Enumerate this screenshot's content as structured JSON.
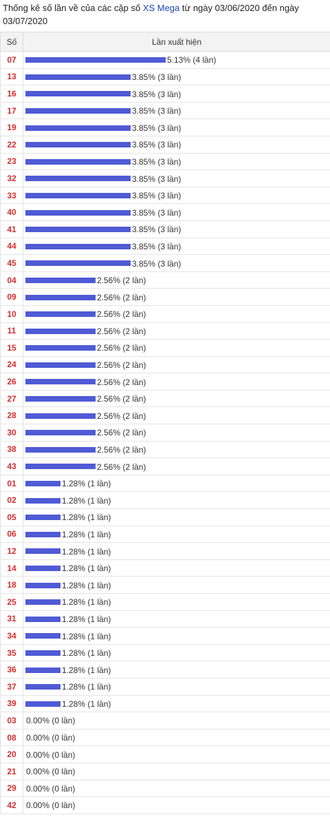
{
  "header": {
    "title_prefix": "Thống kê số lần về của các cặp số ",
    "title_link": "XS Mega",
    "title_suffix": " từ ngày 03/06/2020 đến ngày 03/07/2020"
  },
  "table": {
    "col_number": "Số",
    "col_occurrences": "Lần xuất hiện"
  },
  "colors": {
    "bar": "#4f5bd5",
    "number": "#d32f2f",
    "link": "#1a43b8"
  },
  "chart_data": {
    "type": "bar",
    "orientation": "horizontal",
    "unit_suffix": "lần",
    "rows": [
      {
        "number": "07",
        "percent": "5.13%",
        "count": 4,
        "label": "5.13% (4 lần)"
      },
      {
        "number": "13",
        "percent": "3.85%",
        "count": 3,
        "label": "3.85% (3 lần)"
      },
      {
        "number": "16",
        "percent": "3.85%",
        "count": 3,
        "label": "3.85% (3 lần)"
      },
      {
        "number": "17",
        "percent": "3.85%",
        "count": 3,
        "label": "3.85% (3 lần)"
      },
      {
        "number": "19",
        "percent": "3.85%",
        "count": 3,
        "label": "3.85% (3 lần)"
      },
      {
        "number": "22",
        "percent": "3.85%",
        "count": 3,
        "label": "3.85% (3 lần)"
      },
      {
        "number": "23",
        "percent": "3.85%",
        "count": 3,
        "label": "3.85% (3 lần)"
      },
      {
        "number": "32",
        "percent": "3.85%",
        "count": 3,
        "label": "3.85% (3 lần)"
      },
      {
        "number": "33",
        "percent": "3.85%",
        "count": 3,
        "label": "3.85% (3 lần)"
      },
      {
        "number": "40",
        "percent": "3.85%",
        "count": 3,
        "label": "3.85% (3 lần)"
      },
      {
        "number": "41",
        "percent": "3.85%",
        "count": 3,
        "label": "3.85% (3 lần)"
      },
      {
        "number": "44",
        "percent": "3.85%",
        "count": 3,
        "label": "3.85% (3 lần)"
      },
      {
        "number": "45",
        "percent": "3.85%",
        "count": 3,
        "label": "3.85% (3 lần)"
      },
      {
        "number": "04",
        "percent": "2.56%",
        "count": 2,
        "label": "2.56% (2 lần)"
      },
      {
        "number": "09",
        "percent": "2.56%",
        "count": 2,
        "label": "2.56% (2 lần)"
      },
      {
        "number": "10",
        "percent": "2.56%",
        "count": 2,
        "label": "2.56% (2 lần)"
      },
      {
        "number": "11",
        "percent": "2.56%",
        "count": 2,
        "label": "2.56% (2 lần)"
      },
      {
        "number": "15",
        "percent": "2.56%",
        "count": 2,
        "label": "2.56% (2 lần)"
      },
      {
        "number": "24",
        "percent": "2.56%",
        "count": 2,
        "label": "2.56% (2 lần)"
      },
      {
        "number": "26",
        "percent": "2.56%",
        "count": 2,
        "label": "2.56% (2 lần)"
      },
      {
        "number": "27",
        "percent": "2.56%",
        "count": 2,
        "label": "2.56% (2 lần)"
      },
      {
        "number": "28",
        "percent": "2.56%",
        "count": 2,
        "label": "2.56% (2 lần)"
      },
      {
        "number": "30",
        "percent": "2.56%",
        "count": 2,
        "label": "2.56% (2 lần)"
      },
      {
        "number": "38",
        "percent": "2.56%",
        "count": 2,
        "label": "2.56% (2 lần)"
      },
      {
        "number": "43",
        "percent": "2.56%",
        "count": 2,
        "label": "2.56% (2 lần)"
      },
      {
        "number": "01",
        "percent": "1.28%",
        "count": 1,
        "label": "1.28% (1 lần)"
      },
      {
        "number": "02",
        "percent": "1.28%",
        "count": 1,
        "label": "1.28% (1 lần)"
      },
      {
        "number": "05",
        "percent": "1.28%",
        "count": 1,
        "label": "1.28% (1 lần)"
      },
      {
        "number": "06",
        "percent": "1.28%",
        "count": 1,
        "label": "1.28% (1 lần)"
      },
      {
        "number": "12",
        "percent": "1.28%",
        "count": 1,
        "label": "1.28% (1 lần)"
      },
      {
        "number": "14",
        "percent": "1.28%",
        "count": 1,
        "label": "1.28% (1 lần)"
      },
      {
        "number": "18",
        "percent": "1.28%",
        "count": 1,
        "label": "1.28% (1 lần)"
      },
      {
        "number": "25",
        "percent": "1.28%",
        "count": 1,
        "label": "1.28% (1 lần)"
      },
      {
        "number": "31",
        "percent": "1.28%",
        "count": 1,
        "label": "1.28% (1 lần)"
      },
      {
        "number": "34",
        "percent": "1.28%",
        "count": 1,
        "label": "1.28% (1 lần)"
      },
      {
        "number": "35",
        "percent": "1.28%",
        "count": 1,
        "label": "1.28% (1 lần)"
      },
      {
        "number": "36",
        "percent": "1.28%",
        "count": 1,
        "label": "1.28% (1 lần)"
      },
      {
        "number": "37",
        "percent": "1.28%",
        "count": 1,
        "label": "1.28% (1 lần)"
      },
      {
        "number": "39",
        "percent": "1.28%",
        "count": 1,
        "label": "1.28% (1 lần)"
      },
      {
        "number": "03",
        "percent": "0.00%",
        "count": 0,
        "label": "0.00% (0 lần)"
      },
      {
        "number": "08",
        "percent": "0.00%",
        "count": 0,
        "label": "0.00% (0 lần)"
      },
      {
        "number": "20",
        "percent": "0.00%",
        "count": 0,
        "label": "0.00% (0 lần)"
      },
      {
        "number": "21",
        "percent": "0.00%",
        "count": 0,
        "label": "0.00% (0 lần)"
      },
      {
        "number": "29",
        "percent": "0.00%",
        "count": 0,
        "label": "0.00% (0 lần)"
      },
      {
        "number": "42",
        "percent": "0.00%",
        "count": 0,
        "label": "0.00% (0 lần)"
      }
    ]
  }
}
